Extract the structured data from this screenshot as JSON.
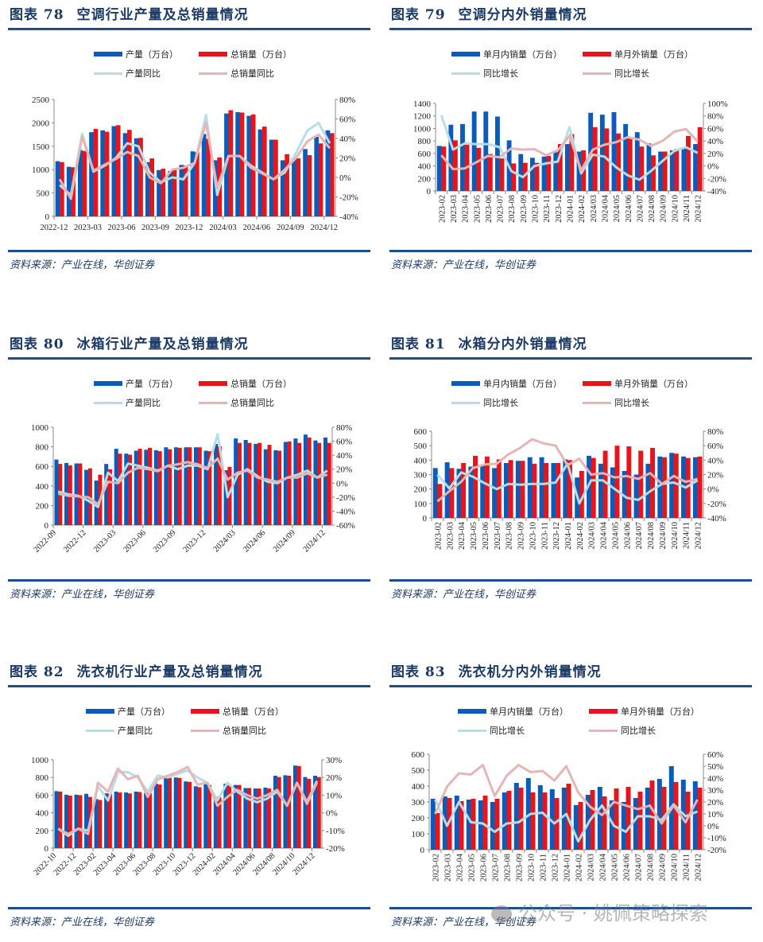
{
  "colors": {
    "domestic_bar": "#0a5cb8",
    "export_bar": "#e8141c",
    "domestic_line": "#b6dde8",
    "export_line": "#e6b5b5",
    "title": "#1b3a66",
    "rule": "#1f4e8c"
  },
  "watermark": "公众号 · 姚佩策略探索",
  "panels": [
    {
      "fig_label": "图表 78",
      "title": "空调行业产量及总销量情况",
      "source": "资料来源：产业在线，华创证券",
      "legend": [
        "产量（万台）",
        "总销量（万台）",
        "产量同比",
        "总销量同比"
      ]
    },
    {
      "fig_label": "图表 79",
      "title": "空调分内外销量情况",
      "source": "资料来源：产业在线，华创证券",
      "legend": [
        "单月内销量（万台）",
        "单月外销量（万台）",
        "同比增长",
        "同比增长"
      ]
    },
    {
      "fig_label": "图表 80",
      "title": "冰箱行业产量及总销量情况",
      "source": "资料来源：产业在线，华创证券",
      "legend": [
        "产量（万台）",
        "总销量（万台）",
        "产量同比",
        "总销量同比"
      ]
    },
    {
      "fig_label": "图表 81",
      "title": "冰箱分内外销量情况",
      "source": "资料来源：产业在线，华创证券",
      "legend": [
        "单月内销量（万台）",
        "单月外销量（万台）",
        "同比增长",
        "同比增长"
      ]
    },
    {
      "fig_label": "图表 82",
      "title": "洗衣机行业产量及总销量情况",
      "source": "资料来源：产业在线，华创证券",
      "legend": [
        "产量（万台）",
        "总销量（万台）",
        "产量同比",
        "总销量同比"
      ]
    },
    {
      "fig_label": "图表 83",
      "title": "洗衣机分内外销量情况",
      "source": "资料来源：产业在线，华创证券",
      "legend": [
        "单月内销量（万台）",
        "单月外销量（万台）",
        "同比增长",
        "同比增长"
      ]
    }
  ],
  "chart_data": [
    {
      "type": "bar+line",
      "title": "空调行业产量及总销量情况",
      "categories": [
        "2022-12",
        "2023-01",
        "2023-02",
        "2023-03",
        "2023-04",
        "2023-05",
        "2023-06",
        "2023-07",
        "2023-08",
        "2023-09",
        "2023-10",
        "2023-11",
        "2023-12",
        "2024/01",
        "2024/02",
        "2024/03",
        "2024/04",
        "2024/05",
        "2024/06",
        "2024/07",
        "2024/08",
        "2024/09",
        "2024/10",
        "2024/11",
        "2024/12"
      ],
      "tick_labels": [
        "2022-12",
        "2023-03",
        "2023-06",
        "2023-09",
        "2023-12",
        "2024/03",
        "2024/06",
        "2024/09",
        "2024/12"
      ],
      "ylim": [
        0,
        2500
      ],
      "y_ticks": [
        "0",
        "500",
        "1000",
        "1500",
        "2000",
        "2500"
      ],
      "y2lim": [
        -40,
        80
      ],
      "y2_ticks": [
        "-40%",
        "-20%",
        "0%",
        "20%",
        "40%",
        "60%",
        "80%"
      ],
      "bars": [
        {
          "name": "产量（万台）",
          "values": [
            1180,
            1060,
            1420,
            1800,
            1840,
            1930,
            1780,
            1670,
            1160,
            990,
            970,
            1100,
            1390,
            1760,
            1200,
            2200,
            2230,
            2150,
            1860,
            1640,
            1200,
            1230,
            1440,
            1700,
            1840
          ]
        },
        {
          "name": "总销量（万台）",
          "values": [
            1160,
            1050,
            1400,
            1870,
            1810,
            1950,
            1850,
            1680,
            1240,
            1020,
            1000,
            1090,
            1370,
            1660,
            1260,
            2270,
            2220,
            2180,
            1920,
            1640,
            1330,
            1240,
            1310,
            1560,
            1780
          ]
        }
      ],
      "lines": [
        {
          "name": "产量同比",
          "values": [
            -8,
            -18,
            45,
            6,
            12,
            20,
            35,
            32,
            5,
            -5,
            0,
            -2,
            15,
            64,
            -18,
            22,
            22,
            12,
            5,
            -2,
            5,
            25,
            48,
            56,
            35
          ]
        },
        {
          "name": "总销量同比",
          "values": [
            -2,
            -22,
            42,
            7,
            13,
            19,
            26,
            22,
            0,
            -6,
            8,
            10,
            15,
            56,
            -10,
            22,
            22,
            10,
            4,
            -2,
            8,
            20,
            37,
            44,
            30
          ]
        }
      ]
    },
    {
      "type": "bar+line",
      "title": "空调分内外销量情况",
      "categories": [
        "2023-02",
        "2023-03",
        "2023-04",
        "2023-05",
        "2023-06",
        "2023-07",
        "2023-08",
        "2023-09",
        "2023-10",
        "2023-11",
        "2023-12",
        "2024-01",
        "2024-02",
        "2024/03",
        "2024/04",
        "2024/05",
        "2024/06",
        "2024/07",
        "2024/08",
        "2024/09",
        "2024/10",
        "2024/11",
        "2024/12"
      ],
      "ylim": [
        0,
        1400
      ],
      "y_ticks": [
        "0",
        "200",
        "400",
        "600",
        "800",
        "1000",
        "1200",
        "1400"
      ],
      "y2lim": [
        -40,
        100
      ],
      "y2_ticks": [
        "-40%",
        "-20%",
        "0%",
        "20%",
        "40%",
        "60%",
        "80%",
        "100%"
      ],
      "bars": [
        {
          "name": "单月内销量（万台）",
          "values": [
            720,
            1060,
            1070,
            1270,
            1270,
            1190,
            810,
            590,
            530,
            550,
            620,
            750,
            630,
            1250,
            1220,
            1260,
            1070,
            940,
            760,
            630,
            650,
            700,
            750
          ]
        },
        {
          "name": "单月外销量（万台）",
          "values": [
            710,
            810,
            740,
            690,
            590,
            520,
            440,
            450,
            450,
            560,
            750,
            910,
            650,
            1020,
            1000,
            920,
            860,
            710,
            570,
            630,
            670,
            880,
            1020
          ]
        }
      ],
      "lines": [
        {
          "name": "同比增长",
          "values": [
            81,
            26,
            36,
            35,
            35,
            30,
            -8,
            -18,
            0,
            4,
            7,
            62,
            -12,
            18,
            15,
            -2,
            -15,
            -22,
            -8,
            8,
            24,
            30,
            21
          ]
        },
        {
          "name": "同比增长",
          "values": [
            17,
            -5,
            -4,
            6,
            16,
            14,
            28,
            26,
            27,
            17,
            25,
            48,
            -7,
            26,
            34,
            38,
            46,
            42,
            32,
            40,
            55,
            59,
            39
          ]
        }
      ]
    },
    {
      "type": "bar+line",
      "title": "冰箱行业产量及总销量情况",
      "categories": [
        "2022-09",
        "2022-10",
        "2022-11",
        "2022-12",
        "2023-01",
        "2023-02",
        "2023-03",
        "2023-04",
        "2023-05",
        "2023-06",
        "2023-07",
        "2023-08",
        "2023-09",
        "2023-10",
        "2023-11",
        "2023-12",
        "2024/01",
        "2024/02",
        "2024/03",
        "2024/04",
        "2024/05",
        "2024/06",
        "2024/07",
        "2024/08",
        "2024/09",
        "2024/10",
        "2024/11",
        "2024/12"
      ],
      "tick_labels": [
        "2022-09",
        "2022-12",
        "2023-03",
        "2023-06",
        "2023-09",
        "2023-12",
        "2024/03",
        "2024/06",
        "2024/09",
        "2024/12"
      ],
      "ylim": [
        0,
        1000
      ],
      "y_ticks": [
        "0",
        "200",
        "400",
        "600",
        "800",
        "1000"
      ],
      "y2lim": [
        -60,
        80
      ],
      "y2_ticks": [
        "-60%",
        "-40%",
        "-20%",
        "0%",
        "20%",
        "40%",
        "60%",
        "80%"
      ],
      "bars": [
        {
          "name": "产量（万台）",
          "values": [
            670,
            635,
            630,
            565,
            455,
            625,
            780,
            730,
            760,
            770,
            765,
            795,
            795,
            795,
            795,
            760,
            830,
            560,
            885,
            870,
            830,
            775,
            765,
            850,
            885,
            925,
            865,
            895
          ]
        },
        {
          "name": "总销量（万台）",
          "values": [
            625,
            610,
            630,
            580,
            515,
            570,
            730,
            720,
            780,
            790,
            755,
            775,
            790,
            795,
            795,
            755,
            805,
            595,
            840,
            840,
            840,
            820,
            760,
            855,
            840,
            895,
            840,
            840
          ]
        }
      ],
      "lines": [
        {
          "name": "产量同比",
          "values": [
            -12,
            -16,
            -18,
            -25,
            -34,
            15,
            3,
            28,
            25,
            22,
            18,
            25,
            20,
            25,
            25,
            20,
            70,
            -20,
            12,
            20,
            10,
            2,
            0,
            8,
            12,
            18,
            8,
            18
          ]
        },
        {
          "name": "总销量同比",
          "values": [
            -15,
            -18,
            -19,
            -20,
            -30,
            2,
            0,
            15,
            22,
            20,
            17,
            25,
            27,
            30,
            27,
            22,
            35,
            5,
            15,
            18,
            8,
            5,
            2,
            8,
            8,
            14,
            8,
            12
          ]
        }
      ]
    },
    {
      "type": "bar+line",
      "title": "冰箱分内外销量情况",
      "categories": [
        "2023-02",
        "2023-03",
        "2023-04",
        "2023-05",
        "2023-06",
        "2023-07",
        "2023-08",
        "2023-09",
        "2023-10",
        "2023-11",
        "2023-12",
        "2024-01",
        "2024-02",
        "2024/03",
        "2024/04",
        "2024/05",
        "2024/06",
        "2024/07",
        "2024/08",
        "2024/09",
        "2024/10",
        "2024/11",
        "2024/12"
      ],
      "ylim": [
        0,
        600
      ],
      "y_ticks": [
        "0",
        "100",
        "200",
        "300",
        "400",
        "500",
        "600"
      ],
      "y2lim": [
        -40,
        80
      ],
      "y2_ticks": [
        "-40%",
        "-20%",
        "0%",
        "20%",
        "40%",
        "60%",
        "80%"
      ],
      "bars": [
        {
          "name": "单月内销量（万台）",
          "values": [
            345,
            385,
            340,
            355,
            365,
            345,
            380,
            395,
            420,
            420,
            380,
            405,
            280,
            430,
            375,
            350,
            325,
            300,
            375,
            425,
            450,
            425,
            420
          ]
        },
        {
          "name": "单月外销量（万台）",
          "values": [
            235,
            345,
            380,
            430,
            425,
            405,
            400,
            395,
            375,
            380,
            380,
            400,
            325,
            415,
            465,
            500,
            495,
            465,
            485,
            420,
            445,
            415,
            425
          ]
        }
      ],
      "lines": [
        {
          "name": "同比增长",
          "values": [
            20,
            1,
            23,
            17,
            8,
            0,
            7,
            6,
            7,
            7,
            9,
            35,
            -20,
            12,
            12,
            0,
            -12,
            -15,
            -3,
            7,
            9,
            2,
            12
          ]
        },
        {
          "name": "同比增长",
          "values": [
            -17,
            -3,
            10,
            29,
            34,
            35,
            48,
            57,
            69,
            63,
            60,
            33,
            42,
            20,
            22,
            16,
            18,
            14,
            22,
            7,
            18,
            10,
            14
          ]
        }
      ]
    },
    {
      "type": "bar+line",
      "title": "洗衣机行业产量及总销量情况",
      "categories": [
        "2022-10",
        "2022-11",
        "2022-12",
        "2023-01",
        "2023-02",
        "2023-03",
        "2023-04",
        "2023-05",
        "2023-06",
        "2023-07",
        "2023-08",
        "2023-09",
        "2023-10",
        "2023-11",
        "2023-12",
        "2024-01",
        "2024-02",
        "2024/03",
        "2024/04",
        "2024/05",
        "2024/06",
        "2024/07",
        "2024/08",
        "2024/09",
        "2024/10",
        "2024/11",
        "2024/12"
      ],
      "tick_labels": [
        "2022-10",
        "2022-12",
        "2023-02",
        "2023-04",
        "2023-06",
        "2023-08",
        "2023-10",
        "2023-12",
        "2024-02",
        "2024/04",
        "2024/06",
        "2024/08",
        "2024/10",
        "2024/12"
      ],
      "ylim": [
        0,
        1000
      ],
      "y_ticks": [
        "0",
        "200",
        "400",
        "600",
        "800",
        "1000"
      ],
      "y2lim": [
        -20,
        30
      ],
      "y2_ticks": [
        "-20%",
        "-10%",
        "0%",
        "10%",
        "20%",
        "30%"
      ],
      "bars": [
        {
          "name": "产量（万台）",
          "values": [
            645,
            605,
            605,
            615,
            555,
            620,
            640,
            630,
            640,
            625,
            730,
            795,
            800,
            755,
            700,
            725,
            580,
            730,
            715,
            680,
            675,
            685,
            820,
            825,
            935,
            805,
            820
          ]
        },
        {
          "name": "总销量（万台）",
          "values": [
            640,
            595,
            600,
            580,
            545,
            615,
            630,
            620,
            635,
            620,
            720,
            795,
            795,
            750,
            690,
            715,
            575,
            710,
            715,
            680,
            675,
            675,
            805,
            820,
            930,
            785,
            805
          ]
        }
      ],
      "lines": [
        {
          "name": "产量同比",
          "values": [
            -9,
            -13,
            -9,
            -10,
            15,
            7,
            23,
            23,
            20,
            12,
            21,
            20,
            22,
            24,
            20,
            17,
            7,
            17,
            12,
            8,
            6,
            8,
            12,
            4,
            17,
            6,
            18
          ]
        },
        {
          "name": "总销量同比",
          "values": [
            -9,
            -12,
            -9,
            -12,
            17,
            12,
            25,
            19,
            21,
            9,
            19,
            21,
            23,
            26,
            16,
            17,
            4,
            9,
            13,
            10,
            8,
            10,
            13,
            4,
            17,
            5,
            17
          ]
        }
      ]
    },
    {
      "type": "bar+line",
      "title": "洗衣机分内外销量情况",
      "categories": [
        "2023-02",
        "2023-03",
        "2023-04",
        "2023-05",
        "2023-06",
        "2023-07",
        "2023-08",
        "2023-09",
        "2023-10",
        "2023-11",
        "2023-12",
        "2024-01",
        "2024-02",
        "2024/03",
        "2024/04",
        "2024/05",
        "2024/06",
        "2024/07",
        "2024/08",
        "2024/09",
        "2024/10",
        "2024/11",
        "2024/12"
      ],
      "ylim": [
        0,
        600
      ],
      "y_ticks": [
        "0",
        "100",
        "200",
        "300",
        "400",
        "500",
        "600"
      ],
      "y2lim": [
        -20,
        60
      ],
      "y2_ticks": [
        "-20%",
        "-10%",
        "0%",
        "10%",
        "20%",
        "30%",
        "40%",
        "50%",
        "60%"
      ],
      "bars": [
        {
          "name": "单月内销量（万台）",
          "values": [
            320,
            335,
            340,
            315,
            310,
            300,
            360,
            420,
            450,
            405,
            380,
            390,
            280,
            345,
            395,
            310,
            300,
            325,
            390,
            445,
            525,
            440,
            430
          ]
        },
        {
          "name": "单月外销量（万台）",
          "values": [
            230,
            325,
            305,
            320,
            340,
            320,
            370,
            390,
            360,
            360,
            325,
            415,
            300,
            375,
            335,
            385,
            395,
            365,
            435,
            395,
            425,
            365,
            390
          ]
        }
      ],
      "lines": [
        {
          "name": "同比增长",
          "values": [
            22,
            0,
            20,
            3,
            2,
            -5,
            2,
            3,
            10,
            11,
            2,
            10,
            -13,
            5,
            17,
            0,
            -5,
            8,
            8,
            5,
            18,
            8,
            12
          ]
        },
        {
          "name": "同比增长",
          "values": [
            10,
            33,
            44,
            43,
            51,
            25,
            42,
            51,
            45,
            46,
            38,
            50,
            28,
            16,
            9,
            20,
            17,
            14,
            17,
            2,
            17,
            3,
            22
          ]
        }
      ]
    }
  ]
}
